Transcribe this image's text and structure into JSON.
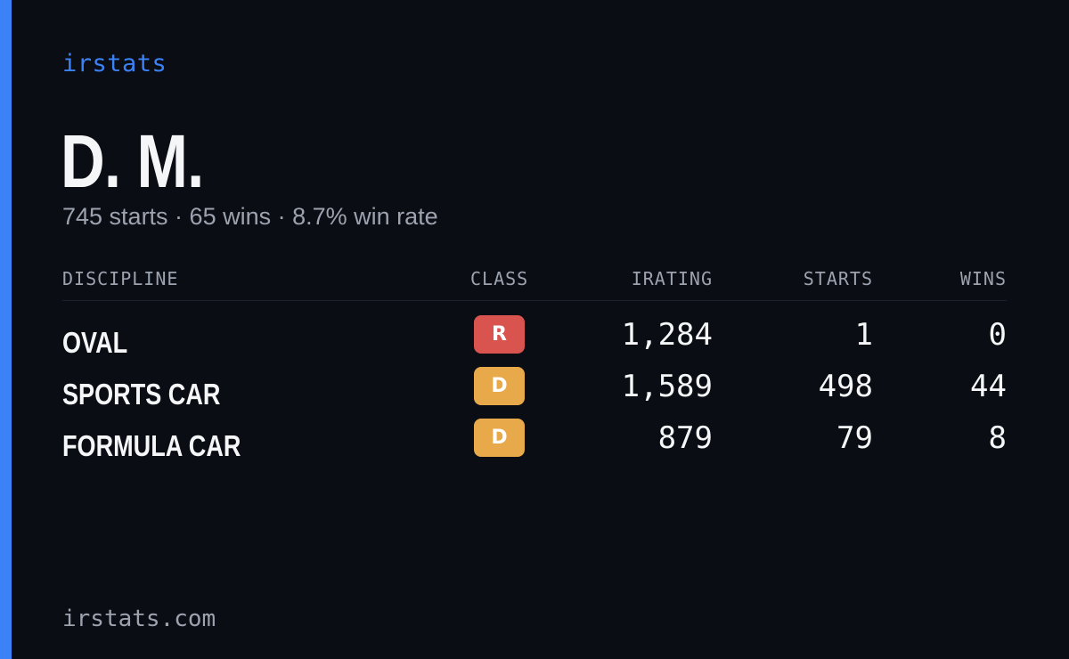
{
  "brand": "irstats",
  "driver": {
    "name": "D. M.",
    "summary": "745 starts · 65 wins · 8.7% win rate"
  },
  "table": {
    "headers": [
      "DISCIPLINE",
      "CLASS",
      "IRATING",
      "STARTS",
      "WINS"
    ],
    "rows": [
      {
        "discipline": "OVAL",
        "class": "R",
        "class_color": "#d9534f",
        "irating": "1,284",
        "starts": "1",
        "wins": "0"
      },
      {
        "discipline": "SPORTS CAR",
        "class": "D",
        "class_color": "#e8a94b",
        "irating": "1,589",
        "starts": "498",
        "wins": "44"
      },
      {
        "discipline": "FORMULA CAR",
        "class": "D",
        "class_color": "#e8a94b",
        "irating": "879",
        "starts": "79",
        "wins": "8"
      }
    ]
  },
  "footer": "irstats.com",
  "colors": {
    "accent": "#3b82f6",
    "background": "#0b0d14",
    "muted": "#9ca3af"
  }
}
